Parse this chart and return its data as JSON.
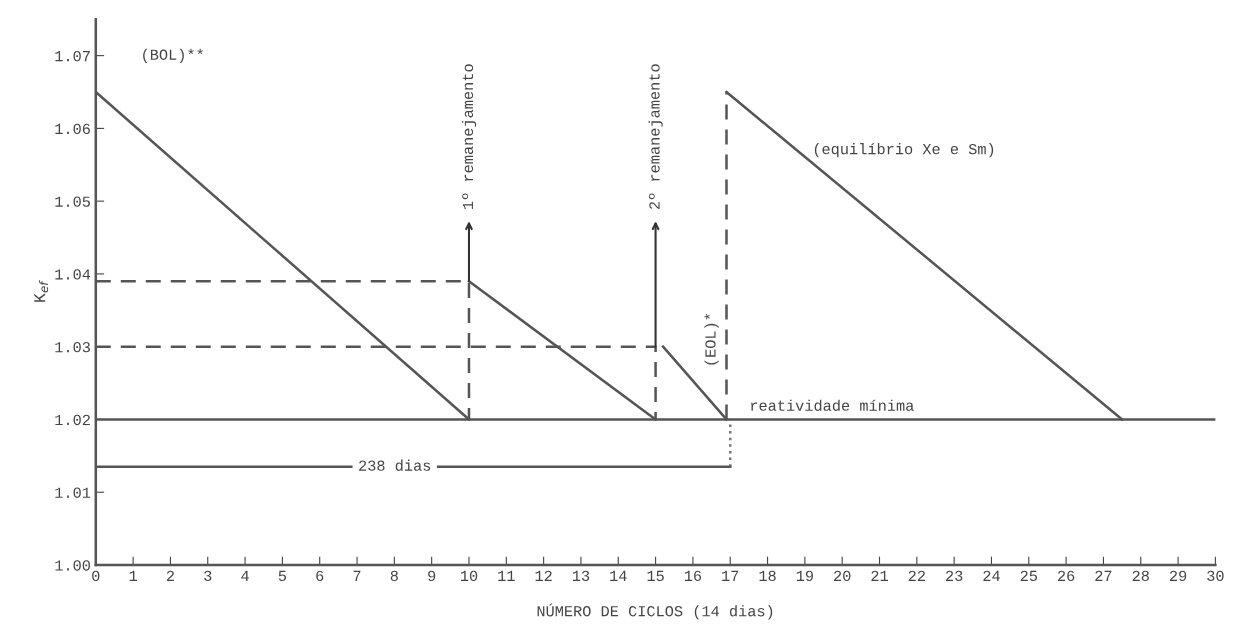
{
  "chart_data": {
    "type": "line",
    "xlabel": "NÚMERO DE CICLOS (14 dias)",
    "ylabel": "K$_{ef}$",
    "xlim": [
      0,
      30
    ],
    "ylim": [
      1.0,
      1.075
    ],
    "xticks": [
      0,
      1,
      2,
      3,
      4,
      5,
      6,
      7,
      8,
      9,
      10,
      11,
      12,
      13,
      14,
      15,
      16,
      17,
      18,
      19,
      20,
      21,
      22,
      23,
      24,
      25,
      26,
      27,
      28,
      29,
      30
    ],
    "yticks": [
      {
        "value": 1.0,
        "label": "1.00"
      },
      1.01,
      1.02,
      1.03,
      1.04,
      1.05,
      1.06,
      1.07
    ],
    "grid": false,
    "marker": "none",
    "series": [
      {
        "color": "#555555",
        "x": [
          0,
          10
        ],
        "values": [
          1.065,
          1.02
        ]
      },
      {
        "color": "#555555",
        "x": [
          10,
          15
        ],
        "values": [
          1.039,
          1.02
        ]
      },
      {
        "color": "#555555",
        "x": [
          15.2,
          16.9
        ],
        "values": [
          1.03,
          1.02
        ]
      },
      {
        "color": "#555555",
        "x": [
          16.9,
          27.5
        ],
        "values": [
          1.065,
          1.02
        ]
      },
      {
        "color": "#555555",
        "line_style": "dashed",
        "x": [
          0,
          10,
          10
        ],
        "values": [
          1.039,
          1.039,
          1.02
        ]
      },
      {
        "color": "#555555",
        "line_style": "dashed",
        "x": [
          0,
          15,
          15
        ],
        "values": [
          1.03,
          1.03,
          1.02
        ]
      },
      {
        "color": "#555555",
        "line_style": "dashed",
        "x": [
          16.9,
          16.9
        ],
        "values": [
          1.02,
          1.065
        ]
      },
      {
        "color": "#777777",
        "line_style": "dotted",
        "x": [
          17.0,
          17.0
        ],
        "values": [
          1.0135,
          1.02
        ]
      },
      {
        "color": "#555555",
        "x": [
          0,
          17.0
        ],
        "values": [
          1.0135,
          1.0135
        ]
      }
    ],
    "ref_lines": [
      {
        "axis": "y",
        "value": 1.02,
        "label": "reatividade mínima",
        "color": "#555555"
      }
    ],
    "annotations": [
      "(BOL)**",
      {
        "text": "1º remanejamento",
        "x": 10,
        "y": 1.039
      },
      {
        "text": "2º remanejamento",
        "x": 15,
        "y": 1.03
      },
      "(EOL)*",
      "(equilíbrio Xe e Sm)",
      "238 dias"
    ]
  }
}
